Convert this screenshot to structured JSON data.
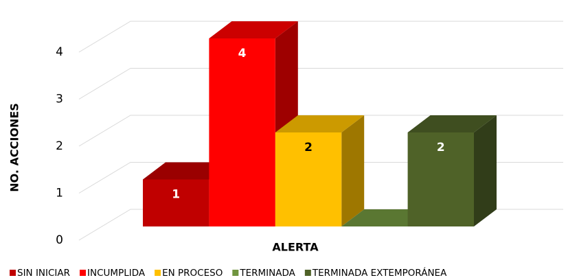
{
  "chart_data": {
    "type": "bar3d",
    "categories": [
      "ALERTA"
    ],
    "ylabel": "NO. ACCIONES",
    "series": [
      {
        "name": "SIN INICIAR",
        "color": "#c00000",
        "values": [
          1
        ]
      },
      {
        "name": "INCUMPLIDA",
        "color": "#ff0000",
        "values": [
          4
        ]
      },
      {
        "name": "EN PROCESO",
        "color": "#ffc000",
        "values": [
          2
        ]
      },
      {
        "name": "TERMINADA",
        "color": "#70953f",
        "values": [
          0
        ]
      },
      {
        "name": "TERMINADA EXTEMPORÁNEA",
        "color": "#4f6228",
        "values": [
          2
        ]
      }
    ],
    "ylim": [
      0,
      4
    ],
    "yticks": [
      0,
      1,
      2,
      3,
      4
    ],
    "grid": true,
    "data_labels": true,
    "legend": "bottom"
  }
}
